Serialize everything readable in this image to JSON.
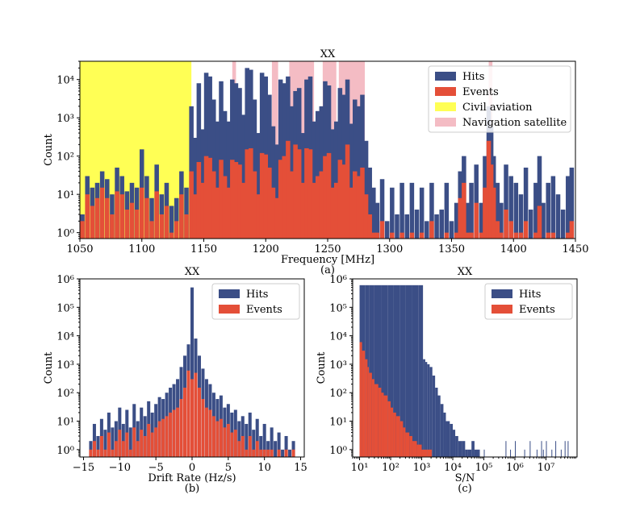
{
  "colors": {
    "hits": "#3b4e86",
    "events": "#e44f38",
    "civil_aviation": "#ffff55",
    "navigation_satellite": "#f4bcc4",
    "axis": "#000000",
    "background": "#ffffff"
  },
  "chart_data": [
    {
      "id": "a",
      "type": "bar",
      "title": "XX",
      "xlabel": "Frequency [MHz]",
      "ylabel": "Count",
      "caption": "(a)",
      "yscale": "log",
      "xlim": [
        1050,
        1450
      ],
      "ylim": [
        0.7,
        30000
      ],
      "xticks": [
        1050,
        1100,
        1150,
        1200,
        1250,
        1300,
        1350,
        1400,
        1450
      ],
      "yticks": [
        {
          "value": 1,
          "label": "10⁰"
        },
        {
          "value": 10,
          "label": "10¹"
        },
        {
          "value": 100,
          "label": "10²"
        },
        {
          "value": 1000,
          "label": "10³"
        },
        {
          "value": 10000,
          "label": "10⁴"
        }
      ],
      "legend": {
        "position": "top-right",
        "entries": [
          "Hits",
          "Events",
          "Civil aviation",
          "Navigation satellite"
        ]
      },
      "bands": [
        {
          "name": "Civil aviation",
          "from": 1050,
          "to": 1140
        },
        {
          "name": "Navigation satellite",
          "from": 1173,
          "to": 1176
        },
        {
          "name": "Navigation satellite",
          "from": 1205,
          "to": 1210
        },
        {
          "name": "Navigation satellite",
          "from": 1219,
          "to": 1239
        },
        {
          "name": "Navigation satellite",
          "from": 1246,
          "to": 1257
        },
        {
          "name": "Navigation satellite",
          "from": 1259,
          "to": 1280
        },
        {
          "name": "Navigation satellite",
          "from": 1380,
          "to": 1383
        }
      ],
      "series": [
        {
          "name": "Hits",
          "x": [
            1052,
            1056,
            1060,
            1064,
            1068,
            1072,
            1076,
            1080,
            1084,
            1088,
            1092,
            1096,
            1100,
            1104,
            1108,
            1112,
            1116,
            1120,
            1124,
            1128,
            1132,
            1136,
            1140,
            1143,
            1146,
            1149,
            1152,
            1155,
            1158,
            1161,
            1164,
            1167,
            1170,
            1173,
            1176,
            1179,
            1182,
            1185,
            1188,
            1191,
            1194,
            1197,
            1200,
            1203,
            1206,
            1209,
            1212,
            1215,
            1218,
            1221,
            1224,
            1227,
            1230,
            1233,
            1236,
            1239,
            1242,
            1245,
            1248,
            1251,
            1254,
            1257,
            1260,
            1263,
            1266,
            1269,
            1272,
            1275,
            1278,
            1281,
            1284,
            1287,
            1290,
            1294,
            1298,
            1302,
            1306,
            1310,
            1314,
            1318,
            1322,
            1326,
            1330,
            1334,
            1338,
            1342,
            1346,
            1350,
            1354,
            1357,
            1360,
            1363,
            1366,
            1370,
            1374,
            1377,
            1380,
            1382,
            1384,
            1387,
            1390,
            1394,
            1398,
            1402,
            1406,
            1410,
            1414,
            1418,
            1421,
            1424,
            1428,
            1432,
            1436,
            1440,
            1444,
            1447
          ],
          "values": [
            3,
            30,
            15,
            20,
            40,
            25,
            10,
            50,
            30,
            12,
            20,
            15,
            150,
            30,
            8,
            60,
            10,
            20,
            5,
            8,
            40,
            15,
            2000,
            300,
            8000,
            500,
            15000,
            12000,
            3000,
            800,
            9000,
            1500,
            800,
            10000,
            8000,
            6000,
            1200,
            20000,
            18000,
            3000,
            400,
            15000,
            12000,
            4000,
            600,
            200,
            10000,
            8000,
            12000,
            2000,
            5000,
            6000,
            400,
            10000,
            12000,
            800,
            1500,
            2000,
            9000,
            7000,
            500,
            800,
            6000,
            4000,
            10000,
            700,
            3000,
            2000,
            4000,
            250,
            50,
            15,
            6,
            25,
            2,
            15,
            3,
            20,
            3,
            20,
            4,
            15,
            2,
            20,
            3,
            4,
            20,
            2,
            6,
            40,
            100,
            6,
            20,
            60,
            6,
            100,
            2000,
            600,
            100,
            20,
            6,
            60,
            30,
            20,
            10,
            50,
            4,
            20,
            100,
            6,
            20,
            30,
            10,
            4,
            30,
            50
          ]
        },
        {
          "name": "Events",
          "x": [
            1052,
            1056,
            1060,
            1064,
            1068,
            1072,
            1076,
            1080,
            1084,
            1088,
            1092,
            1096,
            1100,
            1104,
            1108,
            1112,
            1116,
            1120,
            1124,
            1128,
            1132,
            1136,
            1140,
            1143,
            1146,
            1149,
            1152,
            1155,
            1158,
            1161,
            1164,
            1167,
            1170,
            1173,
            1176,
            1179,
            1182,
            1185,
            1188,
            1191,
            1194,
            1197,
            1200,
            1203,
            1206,
            1209,
            1212,
            1215,
            1218,
            1221,
            1224,
            1227,
            1230,
            1233,
            1236,
            1239,
            1242,
            1245,
            1248,
            1251,
            1254,
            1257,
            1260,
            1263,
            1266,
            1269,
            1272,
            1275,
            1278,
            1281,
            1284,
            1287,
            1290,
            1294,
            1298,
            1302,
            1306,
            1310,
            1314,
            1318,
            1322,
            1326,
            1330,
            1334,
            1338,
            1342,
            1346,
            1350,
            1354,
            1357,
            1360,
            1363,
            1366,
            1370,
            1374,
            1377,
            1380,
            1382,
            1384,
            1387,
            1390,
            1394,
            1398,
            1402,
            1406,
            1410,
            1414,
            1418,
            1421,
            1424,
            1428,
            1432,
            1436,
            1440,
            1444,
            1447
          ],
          "values": [
            2,
            10,
            5,
            8,
            15,
            8,
            3,
            12,
            10,
            4,
            6,
            4,
            15,
            8,
            2,
            12,
            3,
            5,
            1,
            2,
            10,
            3,
            40,
            10,
            70,
            20,
            100,
            90,
            40,
            15,
            80,
            30,
            15,
            80,
            70,
            60,
            20,
            150,
            160,
            40,
            10,
            120,
            110,
            50,
            15,
            8,
            80,
            100,
            250,
            40,
            200,
            150,
            20,
            160,
            150,
            20,
            30,
            40,
            100,
            120,
            15,
            20,
            80,
            60,
            200,
            15,
            40,
            30,
            50,
            10,
            3,
            1,
            1,
            2,
            0,
            1,
            0,
            1,
            0,
            1,
            0,
            1,
            0,
            2,
            0,
            0,
            1,
            0,
            1,
            8,
            20,
            1,
            1,
            6,
            1,
            15,
            250,
            60,
            15,
            2,
            1,
            4,
            2,
            1,
            1,
            2,
            0,
            1,
            5,
            0,
            1,
            1,
            0,
            0,
            1,
            2
          ]
        }
      ]
    },
    {
      "id": "b",
      "type": "bar",
      "title": "XX",
      "xlabel": "Drift Rate (Hz/s)",
      "ylabel": "Count",
      "caption": "(b)",
      "yscale": "log",
      "xlim": [
        -15.5,
        15.5
      ],
      "ylim": [
        0.55,
        1000000
      ],
      "xticks": [
        -15,
        -10,
        -5,
        0,
        5,
        10,
        15
      ],
      "yticks": [
        {
          "value": 1,
          "label": "10⁰"
        },
        {
          "value": 10,
          "label": "10¹"
        },
        {
          "value": 100,
          "label": "10²"
        },
        {
          "value": 1000,
          "label": "10³"
        },
        {
          "value": 10000,
          "label": "10⁴"
        },
        {
          "value": 100000,
          "label": "10⁵"
        },
        {
          "value": 1000000,
          "label": "10⁶"
        }
      ],
      "legend": {
        "position": "top-right",
        "entries": [
          "Hits",
          "Events"
        ]
      },
      "series": [
        {
          "name": "Hits",
          "x": [
            -14,
            -13.5,
            -13,
            -12.5,
            -12,
            -11.5,
            -11,
            -10.5,
            -10,
            -9.5,
            -9,
            -8.5,
            -8,
            -7.5,
            -7,
            -6.5,
            -6,
            -5.5,
            -5,
            -4.5,
            -4,
            -3.5,
            -3,
            -2.5,
            -2,
            -1.5,
            -1,
            -0.5,
            0,
            0.5,
            1,
            1.5,
            2,
            2.5,
            3,
            3.5,
            4,
            4.5,
            5,
            5.5,
            6,
            6.5,
            7,
            7.5,
            8,
            8.5,
            9,
            9.5,
            10,
            10.5,
            11,
            11.5,
            12,
            12.5,
            13,
            13.5,
            14
          ],
          "values": [
            2,
            8,
            3,
            12,
            5,
            20,
            6,
            10,
            30,
            8,
            25,
            6,
            40,
            10,
            30,
            15,
            50,
            20,
            40,
            70,
            60,
            100,
            150,
            200,
            300,
            800,
            2000,
            5000,
            500000,
            8000,
            2000,
            700,
            300,
            200,
            100,
            60,
            80,
            30,
            40,
            20,
            25,
            10,
            15,
            8,
            20,
            5,
            12,
            3,
            8,
            2,
            6,
            2,
            4,
            1,
            3,
            1,
            2
          ]
        },
        {
          "name": "Events",
          "x": [
            -14,
            -13.5,
            -13,
            -12.5,
            -12,
            -11.5,
            -11,
            -10.5,
            -10,
            -9.5,
            -9,
            -8.5,
            -8,
            -7.5,
            -7,
            -6.5,
            -6,
            -5.5,
            -5,
            -4.5,
            -4,
            -3.5,
            -3,
            -2.5,
            -2,
            -1.5,
            -1,
            -0.5,
            0,
            0.5,
            1,
            1.5,
            2,
            2.5,
            3,
            3.5,
            4,
            4.5,
            5,
            5.5,
            6,
            6.5,
            7,
            7.5,
            8,
            8.5,
            9,
            9.5,
            10,
            10.5,
            11,
            11.5,
            12,
            12.5,
            13,
            13.5,
            14
          ],
          "values": [
            1,
            2,
            1,
            3,
            1,
            4,
            1,
            2,
            5,
            2,
            4,
            1,
            6,
            2,
            5,
            3,
            8,
            4,
            6,
            10,
            12,
            15,
            20,
            25,
            30,
            60,
            150,
            600,
            300,
            500,
            150,
            60,
            30,
            25,
            15,
            10,
            12,
            6,
            8,
            4,
            5,
            2,
            3,
            1,
            3,
            1,
            2,
            1,
            1,
            1,
            1,
            0,
            1,
            0,
            1,
            0,
            1
          ]
        }
      ]
    },
    {
      "id": "c",
      "type": "bar",
      "title": "XX",
      "xlabel": "S/N",
      "ylabel": "Count",
      "caption": "(c)",
      "xscale": "log",
      "yscale": "log",
      "xlim": [
        6,
        100000000
      ],
      "ylim": [
        0.55,
        1000000
      ],
      "xticks": [
        {
          "value": 10,
          "label": "10¹"
        },
        {
          "value": 100,
          "label": "10²"
        },
        {
          "value": 1000,
          "label": "10³"
        },
        {
          "value": 10000,
          "label": "10⁴"
        },
        {
          "value": 100000,
          "label": "10⁵"
        },
        {
          "value": 1000000,
          "label": "10⁶"
        },
        {
          "value": 10000000,
          "label": "10⁷"
        }
      ],
      "yticks": [
        {
          "value": 1,
          "label": "10⁰"
        },
        {
          "value": 10,
          "label": "10¹"
        },
        {
          "value": 100,
          "label": "10²"
        },
        {
          "value": 1000,
          "label": "10³"
        },
        {
          "value": 10000,
          "label": "10⁴"
        },
        {
          "value": 100000,
          "label": "10⁵"
        },
        {
          "value": 1000000,
          "label": "10⁶"
        }
      ],
      "legend": {
        "position": "top-right",
        "entries": [
          "Hits",
          "Events"
        ]
      },
      "series": [
        {
          "name": "Hits",
          "x": [
            10,
            15,
            20,
            30,
            50,
            80,
            120,
            200,
            300,
            500,
            800,
            1100,
            1300,
            1500,
            1800,
            2200,
            2700,
            3300,
            4000,
            5000,
            6000,
            8000,
            10000,
            12000,
            15000,
            20000,
            25000,
            30000,
            40000,
            50000,
            70000,
            100000,
            500000,
            700000,
            1000000,
            2000000,
            3000000,
            5000000,
            7000000,
            8000000,
            10000000,
            15000000,
            20000000,
            30000000,
            40000000,
            50000000
          ],
          "values": [
            600000,
            600000,
            600000,
            600000,
            600000,
            600000,
            600000,
            600000,
            600000,
            600000,
            600000,
            1500,
            1200,
            1000,
            800,
            400,
            150,
            80,
            40,
            20,
            10,
            8,
            5,
            3,
            2,
            2,
            1,
            1,
            2,
            1,
            1,
            1,
            2,
            1,
            2,
            1,
            2,
            1,
            2,
            1,
            2,
            1,
            2,
            1,
            2,
            2
          ]
        },
        {
          "name": "Events",
          "x": [
            10,
            12,
            15,
            18,
            20,
            25,
            30,
            40,
            50,
            60,
            80,
            100,
            120,
            150,
            200,
            250,
            300,
            400,
            500,
            700,
            1000,
            1500,
            2000
          ],
          "values": [
            6000,
            3000,
            1500,
            800,
            500,
            300,
            200,
            150,
            100,
            80,
            50,
            30,
            20,
            15,
            10,
            6,
            4,
            3,
            2,
            1.5,
            1,
            1,
            1
          ]
        }
      ]
    }
  ]
}
